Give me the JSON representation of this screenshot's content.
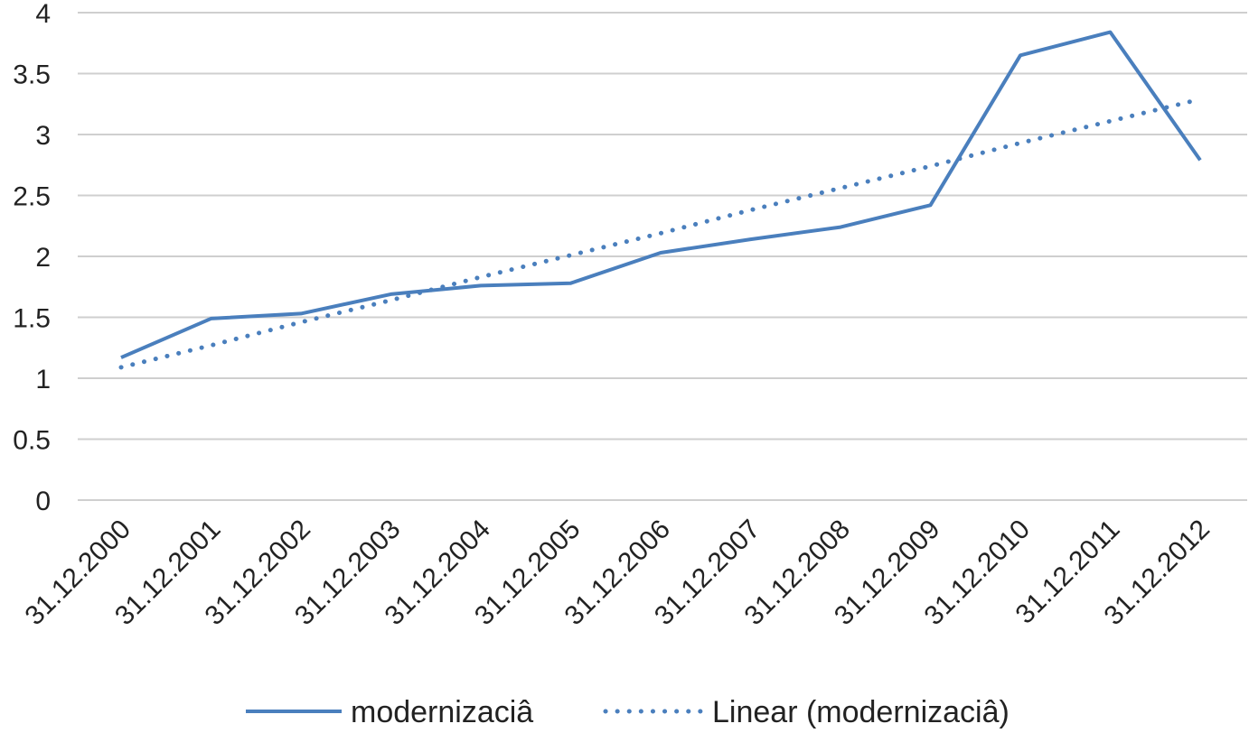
{
  "chart_data": {
    "type": "line",
    "title": "",
    "xlabel": "",
    "ylabel": "",
    "categories": [
      "31.12.2000",
      "31.12.2001",
      "31.12.2002",
      "31.12.2003",
      "31.12.2004",
      "31.12.2005",
      "31.12.2006",
      "31.12.2007",
      "31.12.2008",
      "31.12.2009",
      "31.12.2010",
      "31.12.2011",
      "31.12.2012"
    ],
    "ylim": [
      0,
      4
    ],
    "yticks": [
      "0",
      "0.5",
      "1",
      "1.5",
      "2",
      "2.5",
      "3",
      "3.5",
      "4"
    ],
    "grid": true,
    "legend_position": "bottom",
    "series": [
      {
        "name": "modernizaciâ",
        "style": "solid",
        "color": "#4a7fbd",
        "values": [
          1.17,
          1.49,
          1.53,
          1.69,
          1.76,
          1.78,
          2.03,
          2.14,
          2.24,
          2.42,
          3.65,
          3.84,
          2.79
        ]
      },
      {
        "name": "Linear (modernizaciâ)",
        "style": "dotted",
        "color": "#4a7fbd",
        "values": [
          1.09,
          1.27,
          1.46,
          1.64,
          1.83,
          2.01,
          2.19,
          2.38,
          2.56,
          2.74,
          2.93,
          3.11,
          3.29
        ]
      }
    ]
  }
}
